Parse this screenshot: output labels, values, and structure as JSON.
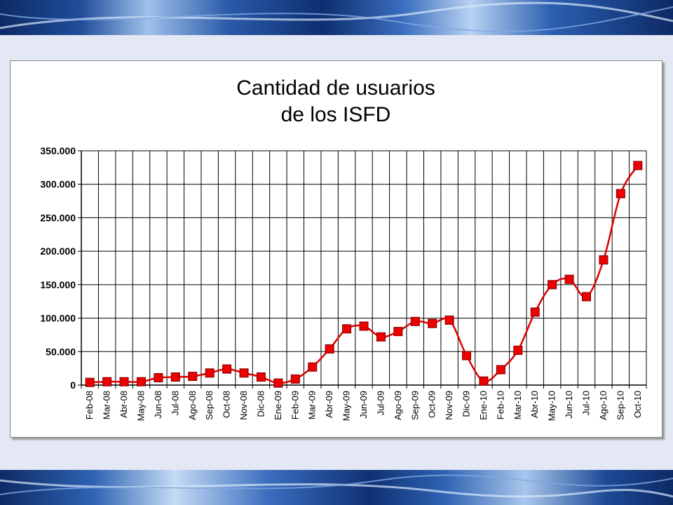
{
  "chart_data": {
    "type": "line",
    "title": "Cantidad de usuarios",
    "subtitle": "de los ISFD",
    "xlabel": "",
    "ylabel": "",
    "ylim": [
      0,
      350000
    ],
    "y_ticks": [
      "0",
      "50.000",
      "100.000",
      "150.000",
      "200.000",
      "250.000",
      "300.000",
      "350.000"
    ],
    "grid": true,
    "line_color": "#dd0000",
    "marker_color": "#ee0000",
    "marker": "square",
    "categories": [
      "Feb-08",
      "Mar-08",
      "Abr-08",
      "May-08",
      "Jun-08",
      "Jul-08",
      "Ago-08",
      "Sep-08",
      "Oct-08",
      "Nov-08",
      "Dic-08",
      "Ene-09",
      "Feb-09",
      "Mar-09",
      "Abr-09",
      "May-09",
      "Jun-09",
      "Jul-09",
      "Ago-09",
      "Sep-09",
      "Oct-09",
      "Nov-09",
      "Dic-09",
      "Ene-10",
      "Feb-10",
      "Mar-10",
      "Abr-10",
      "May-10",
      "Jun-10",
      "Jul-10",
      "Ago-10",
      "Sep-10",
      "Oct-10"
    ],
    "values": [
      4000,
      5000,
      5000,
      5000,
      11000,
      12000,
      13000,
      18000,
      24000,
      18000,
      12000,
      3000,
      9000,
      27000,
      54000,
      84000,
      88000,
      72000,
      80000,
      95000,
      92000,
      97000,
      44000,
      6000,
      23000,
      52000,
      109000,
      150000,
      158000,
      132000,
      187000,
      286000,
      328000
    ]
  }
}
